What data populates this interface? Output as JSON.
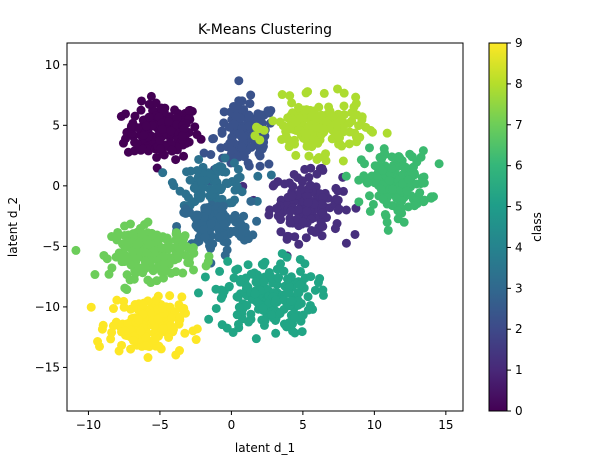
{
  "chart_data": {
    "type": "scatter",
    "title": "K-Means Clustering",
    "xlabel": "latent d_1",
    "ylabel": "latent d_2",
    "xlim": [
      -11.5,
      16.2
    ],
    "ylim": [
      -18.6,
      11.8
    ],
    "x_ticks": [
      -10,
      -5,
      0,
      5,
      10,
      15
    ],
    "y_ticks": [
      -15,
      -10,
      -5,
      0,
      5,
      10
    ],
    "grid": false,
    "colorbar": {
      "label": "class",
      "colormap": "viridis",
      "range": [
        0,
        9
      ],
      "ticks": [
        0,
        1,
        2,
        3,
        4,
        5,
        6,
        7,
        8,
        9
      ]
    },
    "clusters": [
      {
        "class": 0,
        "color": "#440154",
        "center": [
          -4.8,
          4.5
        ],
        "spread": [
          2.3,
          2.1
        ],
        "n": 170
      },
      {
        "class": 1,
        "color": "#472f7d",
        "center": [
          5.2,
          -1.5
        ],
        "spread": [
          2.3,
          2.3
        ],
        "n": 150
      },
      {
        "class": 2,
        "color": "#3a528b",
        "center": [
          1.0,
          4.0
        ],
        "spread": [
          2.0,
          2.6
        ],
        "n": 130
      },
      {
        "class": 3,
        "color": "#2c718e",
        "center": [
          -1.2,
          0.2
        ],
        "spread": [
          2.3,
          1.6
        ],
        "n": 90
      },
      {
        "class": 4,
        "color": "#31688e",
        "center": [
          -1.2,
          -3.4
        ],
        "spread": [
          2.3,
          1.9
        ],
        "n": 120
      },
      {
        "class": 5,
        "color": "#21a585",
        "center": [
          2.5,
          -9.2
        ],
        "spread": [
          3.0,
          2.8
        ],
        "n": 200
      },
      {
        "class": 6,
        "color": "#3bb96f",
        "center": [
          11.5,
          0.3
        ],
        "spread": [
          2.1,
          2.3
        ],
        "n": 170
      },
      {
        "class": 7,
        "color": "#6ccd5a",
        "center": [
          -5.5,
          -5.5
        ],
        "spread": [
          2.6,
          1.9
        ],
        "n": 180
      },
      {
        "class": 8,
        "color": "#addc30",
        "center": [
          6.0,
          4.8
        ],
        "spread": [
          3.0,
          2.0
        ],
        "n": 180
      },
      {
        "class": 9,
        "color": "#fde725",
        "center": [
          -6.0,
          -11.5
        ],
        "spread": [
          2.3,
          2.1
        ],
        "n": 170
      }
    ]
  }
}
